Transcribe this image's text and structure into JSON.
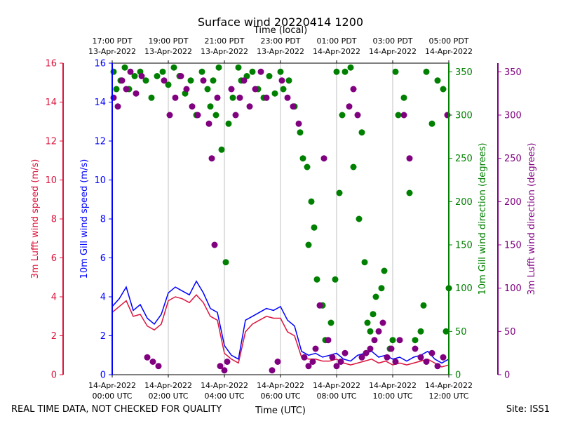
{
  "chart_data": {
    "type": "line+scatter",
    "title": "Surface wind 20220414 1200",
    "top_axis_label": "Time (local)",
    "bottom_axis_label": "Time (UTC)",
    "xlim_hours": [
      0,
      12
    ],
    "top_ticks": [
      {
        "hour": -7,
        "line1": "17:00 PDT",
        "line2": "13-Apr-2022"
      },
      {
        "hour": -5,
        "line1": "19:00 PDT",
        "line2": "13-Apr-2022"
      },
      {
        "hour": -3,
        "line1": "21:00 PDT",
        "line2": "13-Apr-2022"
      },
      {
        "hour": -1,
        "line1": "23:00 PDT",
        "line2": "13-Apr-2022"
      },
      {
        "hour": 1,
        "line1": "01:00 PDT",
        "line2": "14-Apr-2022"
      },
      {
        "hour": 3,
        "line1": "03:00 PDT",
        "line2": "14-Apr-2022"
      },
      {
        "hour": 5,
        "line1": "05:00 PDT",
        "line2": "14-Apr-2022"
      }
    ],
    "bottom_ticks": [
      {
        "hour": 0,
        "line1": "14-Apr-2022",
        "line2": "00:00 UTC"
      },
      {
        "hour": 2,
        "line1": "14-Apr-2022",
        "line2": "02:00 UTC"
      },
      {
        "hour": 4,
        "line1": "14-Apr-2022",
        "line2": "04:00 UTC"
      },
      {
        "hour": 6,
        "line1": "14-Apr-2022",
        "line2": "06:00 UTC"
      },
      {
        "hour": 8,
        "line1": "14-Apr-2022",
        "line2": "08:00 UTC"
      },
      {
        "hour": 10,
        "line1": "14-Apr-2022",
        "line2": "10:00 UTC"
      },
      {
        "hour": 12,
        "line1": "14-Apr-2022",
        "line2": "12:00 UTC"
      }
    ],
    "axes": [
      {
        "id": "lufft_speed",
        "label": "3m Lufft wind speed (m/s)",
        "color": "#dc143c",
        "ylim": [
          0,
          16
        ],
        "ticks": [
          0,
          2,
          4,
          6,
          8,
          10,
          12,
          14,
          16
        ]
      },
      {
        "id": "gill_speed",
        "label": "10m Gill wind speed (m/s)",
        "color": "#0000ff",
        "ylim": [
          0,
          16
        ],
        "ticks": [
          0,
          2,
          4,
          6,
          8,
          10,
          12,
          14,
          16
        ]
      },
      {
        "id": "gill_dir",
        "label": "10m Gill wind direction (degrees)",
        "color": "#008000",
        "ylim": [
          0,
          360
        ],
        "ticks": [
          0,
          50,
          100,
          150,
          200,
          250,
          300,
          350
        ]
      },
      {
        "id": "lufft_dir",
        "label": "3m Lufft wind direction (degrees)",
        "color": "#800080",
        "ylim": [
          0,
          360
        ],
        "ticks": [
          0,
          50,
          100,
          150,
          200,
          250,
          300,
          350
        ]
      }
    ],
    "series": [
      {
        "name": "10m Gill wind speed",
        "axis": "gill_speed",
        "kind": "line",
        "color": "#0000ff",
        "x": [
          0,
          0.25,
          0.5,
          0.75,
          1,
          1.25,
          1.5,
          1.75,
          2,
          2.25,
          2.5,
          2.75,
          3,
          3.25,
          3.5,
          3.75,
          4,
          4.25,
          4.5,
          4.75,
          5,
          5.25,
          5.5,
          5.75,
          6,
          6.25,
          6.5,
          6.75,
          7,
          7.25,
          7.5,
          7.75,
          8,
          8.25,
          8.5,
          8.75,
          9,
          9.25,
          9.5,
          9.75,
          10,
          10.25,
          10.5,
          10.75,
          11,
          11.25,
          11.5,
          11.75,
          12
        ],
        "values": [
          3.5,
          3.9,
          4.5,
          3.3,
          3.6,
          2.9,
          2.6,
          3.1,
          4.2,
          4.5,
          4.3,
          4.1,
          4.8,
          4.2,
          3.4,
          3.2,
          1.5,
          1.0,
          0.8,
          2.8,
          3.0,
          3.2,
          3.4,
          3.3,
          3.5,
          2.8,
          2.5,
          1.2,
          1.0,
          1.1,
          0.9,
          1.0,
          1.1,
          0.8,
          0.7,
          1.0,
          1.1,
          1.2,
          0.9,
          1.0,
          0.8,
          0.9,
          0.7,
          0.9,
          1.0,
          1.2,
          0.8,
          0.6,
          0.8
        ]
      },
      {
        "name": "3m Lufft wind speed",
        "axis": "lufft_speed",
        "kind": "line",
        "color": "#dc143c",
        "x": [
          0,
          0.25,
          0.5,
          0.75,
          1,
          1.25,
          1.5,
          1.75,
          2,
          2.25,
          2.5,
          2.75,
          3,
          3.25,
          3.5,
          3.75,
          4,
          4.25,
          4.5,
          4.75,
          5,
          5.25,
          5.5,
          5.75,
          6,
          6.25,
          6.5,
          6.75,
          7,
          7.25,
          7.5,
          7.75,
          8,
          8.25,
          8.5,
          8.75,
          9,
          9.25,
          9.5,
          9.75,
          10,
          10.25,
          10.5,
          10.75,
          11,
          11.25,
          11.5,
          11.75,
          12
        ],
        "values": [
          3.2,
          3.5,
          3.8,
          3.0,
          3.1,
          2.5,
          2.3,
          2.6,
          3.8,
          4.0,
          3.9,
          3.7,
          4.1,
          3.7,
          3.0,
          2.8,
          1.1,
          0.8,
          0.6,
          2.2,
          2.6,
          2.8,
          3.0,
          2.9,
          2.9,
          2.2,
          2.0,
          0.9,
          0.8,
          0.8,
          0.7,
          0.7,
          0.8,
          0.6,
          0.5,
          0.6,
          0.7,
          0.8,
          0.6,
          0.7,
          0.5,
          0.6,
          0.5,
          0.6,
          0.7,
          0.8,
          0.6,
          0.4,
          0.5
        ]
      },
      {
        "name": "10m Gill wind direction",
        "axis": "gill_dir",
        "kind": "scatter",
        "color": "#008000",
        "x": [
          0.05,
          0.15,
          0.3,
          0.45,
          0.6,
          0.8,
          1.0,
          1.2,
          1.4,
          1.6,
          1.8,
          2.0,
          2.2,
          2.4,
          2.6,
          2.8,
          3.0,
          3.2,
          3.4,
          3.5,
          3.6,
          3.7,
          3.8,
          3.9,
          4.05,
          4.15,
          4.3,
          4.5,
          4.6,
          4.8,
          5.0,
          5.2,
          5.4,
          5.6,
          5.8,
          6.0,
          6.1,
          6.3,
          6.5,
          6.7,
          6.8,
          6.95,
          7.0,
          7.1,
          7.2,
          7.3,
          7.5,
          7.6,
          7.8,
          7.95,
          8.0,
          8.1,
          8.2,
          8.3,
          8.5,
          8.6,
          8.8,
          8.9,
          9.0,
          9.1,
          9.2,
          9.3,
          9.4,
          9.6,
          9.7,
          9.9,
          10.0,
          10.1,
          10.2,
          10.4,
          10.6,
          10.8,
          11.0,
          11.1,
          11.2,
          11.4,
          11.6,
          11.8,
          11.9,
          12.0
        ],
        "values": [
          350,
          330,
          340,
          355,
          330,
          345,
          350,
          340,
          320,
          345,
          350,
          335,
          355,
          345,
          325,
          340,
          300,
          350,
          330,
          310,
          340,
          300,
          355,
          260,
          130,
          290,
          320,
          355,
          340,
          345,
          350,
          330,
          320,
          345,
          325,
          350,
          330,
          340,
          310,
          280,
          250,
          240,
          150,
          200,
          170,
          110,
          80,
          40,
          60,
          110,
          350,
          210,
          300,
          350,
          355,
          240,
          180,
          280,
          130,
          60,
          50,
          70,
          90,
          100,
          120,
          30,
          40,
          350,
          300,
          320,
          210,
          40,
          50,
          80,
          350,
          290,
          340,
          330,
          50,
          100
        ]
      },
      {
        "name": "3m Lufft wind direction",
        "axis": "lufft_dir",
        "kind": "scatter",
        "color": "#800080",
        "x": [
          0.05,
          0.2,
          0.35,
          0.5,
          0.65,
          0.85,
          1.05,
          1.25,
          1.45,
          1.65,
          1.85,
          2.05,
          2.25,
          2.45,
          2.65,
          2.85,
          3.05,
          3.25,
          3.45,
          3.55,
          3.65,
          3.75,
          3.85,
          4.0,
          4.1,
          4.25,
          4.4,
          4.55,
          4.7,
          4.9,
          5.1,
          5.3,
          5.5,
          5.7,
          5.9,
          6.05,
          6.25,
          6.45,
          6.65,
          6.85,
          7.0,
          7.15,
          7.25,
          7.4,
          7.55,
          7.7,
          7.85,
          8.0,
          8.15,
          8.3,
          8.45,
          8.6,
          8.75,
          8.9,
          9.05,
          9.2,
          9.35,
          9.5,
          9.65,
          9.8,
          9.95,
          10.1,
          10.25,
          10.4,
          10.6,
          10.8,
          11.0,
          11.2,
          11.4,
          11.6,
          11.8,
          11.95
        ],
        "values": [
          320,
          310,
          340,
          330,
          350,
          325,
          345,
          20,
          15,
          10,
          340,
          300,
          320,
          345,
          330,
          310,
          300,
          340,
          290,
          250,
          150,
          320,
          10,
          5,
          15,
          330,
          300,
          320,
          340,
          310,
          330,
          350,
          320,
          5,
          15,
          340,
          320,
          310,
          290,
          20,
          10,
          15,
          30,
          80,
          250,
          40,
          20,
          10,
          15,
          25,
          310,
          330,
          300,
          20,
          25,
          30,
          40,
          50,
          60,
          20,
          30,
          15,
          40,
          300,
          250,
          30,
          20,
          15,
          25,
          10,
          20,
          300
        ]
      }
    ]
  },
  "footer": {
    "left": "REAL TIME DATA, NOT CHECKED FOR QUALITY",
    "right": "Site: ISS1"
  }
}
